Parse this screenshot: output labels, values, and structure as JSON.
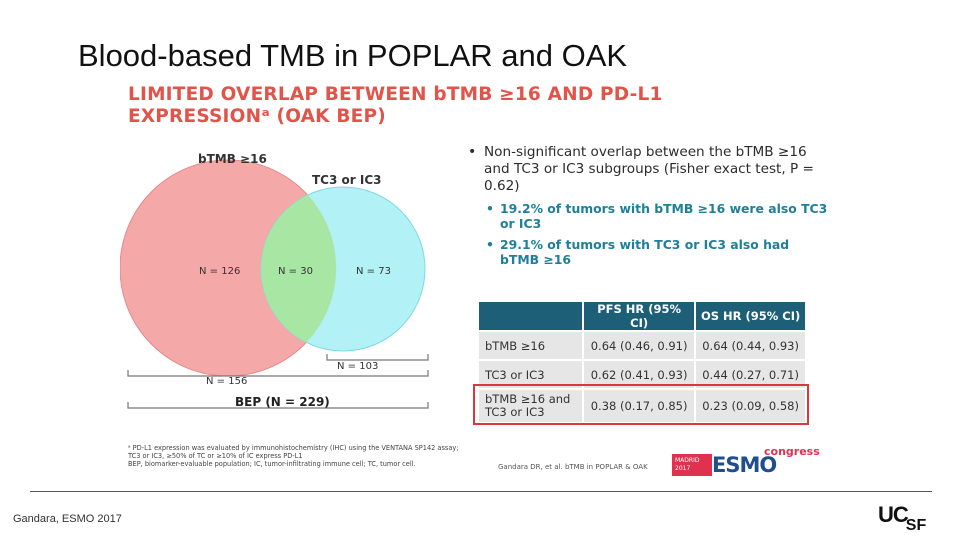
{
  "slide": {
    "title": "Blood-based TMB in POPLAR and OAK",
    "footer_credit": "Gandara, ESMO 2017",
    "logo_text": {
      "uc": "UC",
      "sf": "SF"
    }
  },
  "panel": {
    "heading_line1": "LIMITED OVERLAP BETWEEN bTMB ≥16 AND PD-L1",
    "heading_line2": "EXPRESSIONᵃ (OAK BEP)",
    "venn": {
      "set_a_label": "bTMB ≥16",
      "set_b_label": "TC3 or IC3",
      "only_a": "N = 126",
      "both": "N = 30",
      "only_b": "N = 73",
      "total_b": "N = 103",
      "total_a": "N = 156",
      "total_bep": "BEP (N = 229)",
      "colors": {
        "set_a": "#f4a9a8",
        "set_b": "#aef0f4",
        "overlap": "#a8e6a3"
      }
    },
    "bullets": {
      "main": "Non-significant overlap between the bTMB ≥16 and TC3 or IC3 subgroups (Fisher exact test, P = 0.62)",
      "sub": [
        "19.2% of tumors with bTMB ≥16 were also TC3 or IC3",
        "29.1% of tumors with TC3 or IC3 also had bTMB ≥16"
      ]
    },
    "table": {
      "headers": [
        "",
        "PFS HR (95% CI)",
        "OS HR (95% CI)"
      ],
      "rows": [
        {
          "label": "bTMB ≥16",
          "pfs": "0.64 (0.46, 0.91)",
          "os": "0.64 (0.44, 0.93)"
        },
        {
          "label": "TC3 or IC3",
          "pfs": "0.62 (0.41, 0.93)",
          "os": "0.44 (0.27, 0.71)"
        },
        {
          "label_line1": "bTMB ≥16 and",
          "label_line2": "TC3 or IC3",
          "pfs": "0.38 (0.17, 0.85)",
          "os": "0.23 (0.09, 0.58)"
        }
      ],
      "header_color": "#1d5f77",
      "highlight_color": "#d9363e"
    },
    "footnote": {
      "line1": "ᵃ PD-L1 expression was evaluated by immunohistochemistry (IHC) using the VENTANA SP142 assay;",
      "line2": "TC3 or IC3, ≥50% of TC or ≥10% of IC express PD-L1",
      "line3": "BEP, biomarker-evaluable population; IC, tumor-infiltrating immune cell; TC, tumor cell."
    },
    "citation": "Gandara DR, et al. bTMB in POPLAR & OAK",
    "esmo_logo": {
      "madrid": "MADRID",
      "year": "2017",
      "word": "ESMO",
      "congress": "congress"
    }
  }
}
